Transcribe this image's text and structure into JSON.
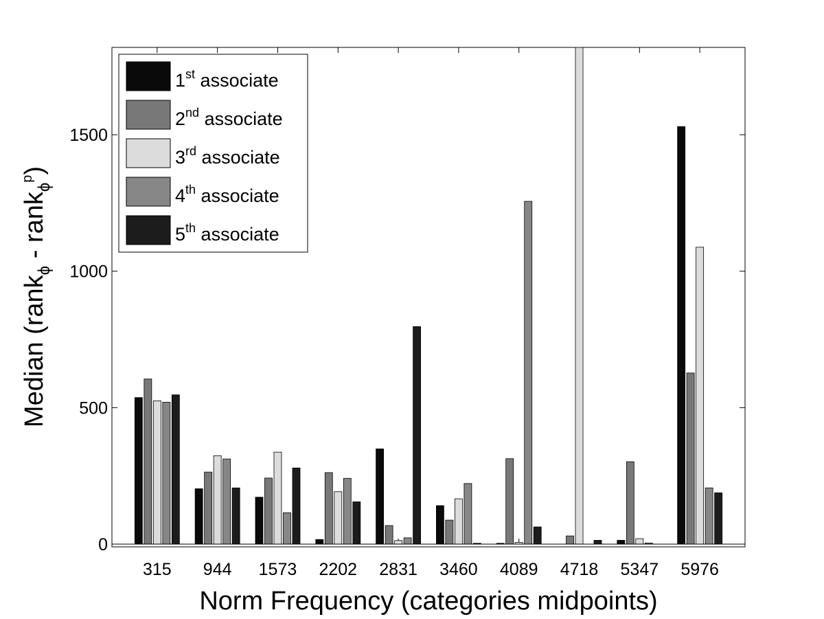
{
  "chart_data": {
    "type": "bar",
    "xlabel": "Norm Frequency (categories midpoints)",
    "ylabel": {
      "prefix": "Median (rank",
      "sub1": "ϕ",
      "middle": " - rank",
      "sub2": "ϕ",
      "sup2": "p",
      "suffix": ")"
    },
    "categories": [
      "315",
      "944",
      "1573",
      "2202",
      "2831",
      "3460",
      "4089",
      "4718",
      "5347",
      "5976"
    ],
    "y_ticks": [
      "0",
      "500",
      "1000",
      "1500"
    ],
    "ylim": [
      0,
      1820
    ],
    "grid": false,
    "legend_position": "top-left",
    "series": [
      {
        "name": "associate",
        "ordinal_num": "1",
        "ordinal_sup": "st",
        "color": "#0a0a0a",
        "values": [
          537,
          203,
          172,
          17,
          349,
          141,
          3,
          0,
          14,
          1530
        ]
      },
      {
        "name": "associate",
        "ordinal_num": "2",
        "ordinal_sup": "nd",
        "color": "#787878",
        "values": [
          605,
          264,
          242,
          262,
          68,
          88,
          313,
          30,
          302,
          627
        ]
      },
      {
        "name": "associate",
        "ordinal_num": "3",
        "ordinal_sup": "rd",
        "color": "#dcdcdc",
        "values": [
          525,
          324,
          337,
          192,
          13,
          166,
          6,
          1820,
          20,
          1088
        ]
      },
      {
        "name": "associate",
        "ordinal_num": "4",
        "ordinal_sup": "th",
        "color": "#878787",
        "values": [
          520,
          312,
          115,
          241,
          23,
          222,
          1256,
          0,
          4,
          206
        ]
      },
      {
        "name": "associate",
        "ordinal_num": "5",
        "ordinal_sup": "th",
        "color": "#1c1c1c",
        "values": [
          547,
          206,
          279,
          155,
          797,
          3,
          63,
          14,
          0,
          188
        ]
      }
    ]
  }
}
